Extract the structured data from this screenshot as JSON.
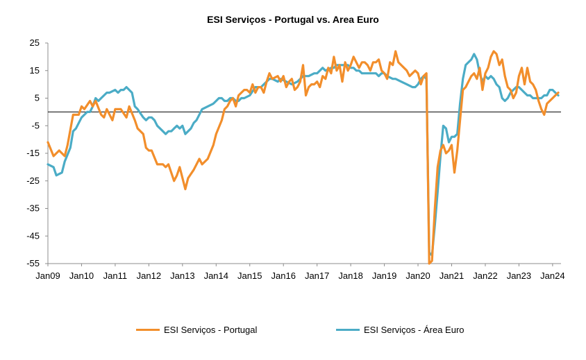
{
  "chart_data": {
    "type": "line",
    "title": "ESI  Serviços  -  Portugal vs. Area Euro",
    "xlabel": "",
    "ylabel": "",
    "ylim": [
      -55,
      25
    ],
    "yticks": [
      25,
      15,
      5,
      -5,
      -15,
      -25,
      -35,
      -45,
      -55
    ],
    "xticks": [
      "Jan09",
      "Jan10",
      "Jan11",
      "Jan12",
      "Jan13",
      "Jan14",
      "Jan15",
      "Jan16",
      "Jan17",
      "Jan18",
      "Jan19",
      "Jan20",
      "Jan21",
      "Jan22",
      "Jan23",
      "Jan24"
    ],
    "grid": false,
    "legend": "bottom",
    "series": [
      {
        "name": "ESI Serviços  - Portugal",
        "color": "#F28E2B",
        "points": [
          [
            0,
            -11
          ],
          [
            2,
            -16
          ],
          [
            4,
            -14
          ],
          [
            6,
            -16
          ],
          [
            7,
            -12
          ],
          [
            9,
            -1
          ],
          [
            11,
            -1
          ],
          [
            12,
            2
          ],
          [
            13,
            1
          ],
          [
            15,
            4
          ],
          [
            16,
            2
          ],
          [
            17,
            4
          ],
          [
            19,
            -1
          ],
          [
            20,
            -2
          ],
          [
            21,
            1
          ],
          [
            23,
            -3
          ],
          [
            24,
            1
          ],
          [
            26,
            1
          ],
          [
            28,
            -2
          ],
          [
            29,
            2
          ],
          [
            31,
            -3
          ],
          [
            32,
            -6
          ],
          [
            34,
            -8
          ],
          [
            35,
            -13
          ],
          [
            36,
            -14
          ],
          [
            37,
            -14
          ],
          [
            39,
            -19
          ],
          [
            41,
            -19
          ],
          [
            42,
            -20
          ],
          [
            43,
            -19
          ],
          [
            45,
            -25
          ],
          [
            46,
            -23
          ],
          [
            47,
            -20
          ],
          [
            49,
            -28
          ],
          [
            50,
            -24
          ],
          [
            52,
            -21
          ],
          [
            54,
            -17
          ],
          [
            55,
            -19
          ],
          [
            57,
            -17
          ],
          [
            59,
            -12
          ],
          [
            60,
            -8
          ],
          [
            62,
            -3
          ],
          [
            63,
            1
          ],
          [
            64,
            2
          ],
          [
            65,
            4
          ],
          [
            66,
            5
          ],
          [
            67,
            2
          ],
          [
            68,
            6
          ],
          [
            69,
            7
          ],
          [
            70,
            8
          ],
          [
            71,
            8
          ],
          [
            72,
            7
          ],
          [
            73,
            10
          ],
          [
            74,
            7
          ],
          [
            75,
            9
          ],
          [
            76,
            9
          ],
          [
            77,
            7
          ],
          [
            78,
            11
          ],
          [
            79,
            14
          ],
          [
            80,
            12
          ],
          [
            82,
            13
          ],
          [
            83,
            11
          ],
          [
            84,
            13
          ],
          [
            85,
            9
          ],
          [
            86,
            11
          ],
          [
            87,
            12
          ],
          [
            88,
            8
          ],
          [
            89,
            9
          ],
          [
            90,
            11
          ],
          [
            91,
            17
          ],
          [
            92,
            6
          ],
          [
            93,
            9
          ],
          [
            94,
            10
          ],
          [
            95,
            10
          ],
          [
            96,
            11
          ],
          [
            97,
            9
          ],
          [
            98,
            13
          ],
          [
            99,
            12
          ],
          [
            100,
            16
          ],
          [
            101,
            14
          ],
          [
            102,
            20
          ],
          [
            103,
            15
          ],
          [
            104,
            17
          ],
          [
            105,
            11
          ],
          [
            106,
            18
          ],
          [
            107,
            15
          ],
          [
            108,
            17
          ],
          [
            109,
            20
          ],
          [
            110,
            18
          ],
          [
            111,
            16
          ],
          [
            112,
            18
          ],
          [
            113,
            18
          ],
          [
            114,
            17
          ],
          [
            115,
            15
          ],
          [
            116,
            18
          ],
          [
            117,
            18
          ],
          [
            118,
            19
          ],
          [
            119,
            15
          ],
          [
            120,
            14
          ],
          [
            121,
            12
          ],
          [
            122,
            18
          ],
          [
            123,
            17
          ],
          [
            124,
            22
          ],
          [
            125,
            18
          ],
          [
            126,
            17
          ],
          [
            127,
            16
          ],
          [
            128,
            15
          ],
          [
            129,
            13
          ],
          [
            130,
            14
          ],
          [
            131,
            15
          ],
          [
            132,
            14
          ],
          [
            133,
            10
          ],
          [
            134,
            13
          ],
          [
            135,
            14
          ],
          [
            136,
            -55
          ],
          [
            137,
            -54
          ],
          [
            138,
            -35
          ],
          [
            139,
            -20
          ],
          [
            140,
            -14
          ],
          [
            141,
            -12
          ],
          [
            142,
            -15
          ],
          [
            143,
            -14
          ],
          [
            144,
            -12
          ],
          [
            145,
            -22
          ],
          [
            146,
            -14
          ],
          [
            147,
            -3
          ],
          [
            148,
            8
          ],
          [
            149,
            9
          ],
          [
            150,
            11
          ],
          [
            151,
            13
          ],
          [
            152,
            14
          ],
          [
            153,
            12
          ],
          [
            154,
            16
          ],
          [
            155,
            8
          ],
          [
            156,
            14
          ],
          [
            157,
            16
          ],
          [
            158,
            20
          ],
          [
            159,
            22
          ],
          [
            160,
            21
          ],
          [
            161,
            17
          ],
          [
            162,
            19
          ],
          [
            163,
            13
          ],
          [
            164,
            9
          ],
          [
            165,
            8
          ],
          [
            166,
            5
          ],
          [
            167,
            7
          ],
          [
            168,
            13
          ],
          [
            169,
            16
          ],
          [
            170,
            10
          ],
          [
            171,
            16
          ],
          [
            172,
            11
          ],
          [
            173,
            10
          ],
          [
            174,
            8
          ],
          [
            175,
            4
          ],
          [
            176,
            1
          ],
          [
            177,
            -1
          ],
          [
            178,
            3
          ],
          [
            179,
            4
          ],
          [
            180,
            5
          ],
          [
            181,
            6
          ],
          [
            182,
            7
          ]
        ]
      },
      {
        "name": "ESI Serviços - Área Euro",
        "color": "#4BACC6",
        "points": [
          [
            0,
            -19
          ],
          [
            2,
            -20
          ],
          [
            3,
            -23
          ],
          [
            5,
            -22
          ],
          [
            6,
            -18
          ],
          [
            8,
            -13
          ],
          [
            9,
            -7
          ],
          [
            10,
            -6
          ],
          [
            11,
            -4
          ],
          [
            12,
            -2
          ],
          [
            13,
            -1
          ],
          [
            14,
            0
          ],
          [
            15,
            0
          ],
          [
            16,
            2
          ],
          [
            17,
            5
          ],
          [
            18,
            4
          ],
          [
            19,
            5
          ],
          [
            20,
            6
          ],
          [
            21,
            7
          ],
          [
            22,
            7
          ],
          [
            24,
            8
          ],
          [
            25,
            7
          ],
          [
            26,
            8
          ],
          [
            27,
            8
          ],
          [
            28,
            9
          ],
          [
            29,
            8
          ],
          [
            30,
            7
          ],
          [
            31,
            2
          ],
          [
            32,
            1
          ],
          [
            34,
            -2
          ],
          [
            35,
            -3
          ],
          [
            36,
            -2
          ],
          [
            37,
            -2
          ],
          [
            38,
            -3
          ],
          [
            39,
            -5
          ],
          [
            40,
            -6
          ],
          [
            41,
            -7
          ],
          [
            42,
            -8
          ],
          [
            43,
            -7
          ],
          [
            44,
            -7
          ],
          [
            45,
            -6
          ],
          [
            46,
            -5
          ],
          [
            47,
            -6
          ],
          [
            48,
            -5
          ],
          [
            49,
            -8
          ],
          [
            51,
            -6
          ],
          [
            52,
            -4
          ],
          [
            53,
            -3
          ],
          [
            55,
            1
          ],
          [
            57,
            2
          ],
          [
            59,
            3
          ],
          [
            60,
            4
          ],
          [
            61,
            5
          ],
          [
            62,
            5
          ],
          [
            63,
            4
          ],
          [
            64,
            4
          ],
          [
            65,
            5
          ],
          [
            66,
            5
          ],
          [
            67,
            4
          ],
          [
            68,
            4
          ],
          [
            69,
            5
          ],
          [
            70,
            5
          ],
          [
            72,
            6
          ],
          [
            74,
            9
          ],
          [
            76,
            9
          ],
          [
            78,
            11
          ],
          [
            79,
            12
          ],
          [
            80,
            12
          ],
          [
            82,
            11
          ],
          [
            83,
            12
          ],
          [
            85,
            11
          ],
          [
            87,
            10
          ],
          [
            89,
            11
          ],
          [
            90,
            12
          ],
          [
            91,
            13
          ],
          [
            92,
            13
          ],
          [
            93,
            13
          ],
          [
            95,
            14
          ],
          [
            96,
            14
          ],
          [
            97,
            15
          ],
          [
            98,
            16
          ],
          [
            99,
            15
          ],
          [
            101,
            16
          ],
          [
            102,
            16
          ],
          [
            103,
            17
          ],
          [
            105,
            17
          ],
          [
            106,
            17
          ],
          [
            107,
            17
          ],
          [
            108,
            16
          ],
          [
            109,
            16
          ],
          [
            110,
            15
          ],
          [
            111,
            15
          ],
          [
            112,
            14
          ],
          [
            114,
            14
          ],
          [
            115,
            14
          ],
          [
            116,
            14
          ],
          [
            117,
            14
          ],
          [
            118,
            13
          ],
          [
            119,
            14
          ],
          [
            120,
            14
          ],
          [
            121,
            13
          ],
          [
            123,
            12
          ],
          [
            124,
            12
          ],
          [
            126,
            11
          ],
          [
            128,
            10
          ],
          [
            130,
            9
          ],
          [
            131,
            9
          ],
          [
            132,
            10
          ],
          [
            133,
            12
          ],
          [
            134,
            13
          ],
          [
            135,
            12
          ],
          [
            136,
            -51
          ],
          [
            137,
            -52
          ],
          [
            138,
            -41
          ],
          [
            139,
            -29
          ],
          [
            140,
            -16
          ],
          [
            141,
            -5
          ],
          [
            142,
            -6
          ],
          [
            143,
            -11
          ],
          [
            144,
            -9
          ],
          [
            145,
            -9
          ],
          [
            146,
            -8
          ],
          [
            147,
            3
          ],
          [
            148,
            12
          ],
          [
            149,
            17
          ],
          [
            150,
            18
          ],
          [
            151,
            19
          ],
          [
            152,
            21
          ],
          [
            153,
            19
          ],
          [
            154,
            14
          ],
          [
            155,
            11
          ],
          [
            156,
            13
          ],
          [
            157,
            12
          ],
          [
            158,
            13
          ],
          [
            159,
            12
          ],
          [
            160,
            10
          ],
          [
            161,
            9
          ],
          [
            162,
            5
          ],
          [
            163,
            4
          ],
          [
            164,
            5
          ],
          [
            165,
            7
          ],
          [
            166,
            8
          ],
          [
            167,
            9
          ],
          [
            168,
            9
          ],
          [
            169,
            8
          ],
          [
            170,
            7
          ],
          [
            171,
            6
          ],
          [
            172,
            6
          ],
          [
            173,
            5
          ],
          [
            174,
            5
          ],
          [
            175,
            5
          ],
          [
            176,
            5
          ],
          [
            177,
            6
          ],
          [
            178,
            6
          ],
          [
            179,
            8
          ],
          [
            180,
            8
          ],
          [
            181,
            7
          ],
          [
            182,
            6
          ]
        ]
      }
    ]
  }
}
